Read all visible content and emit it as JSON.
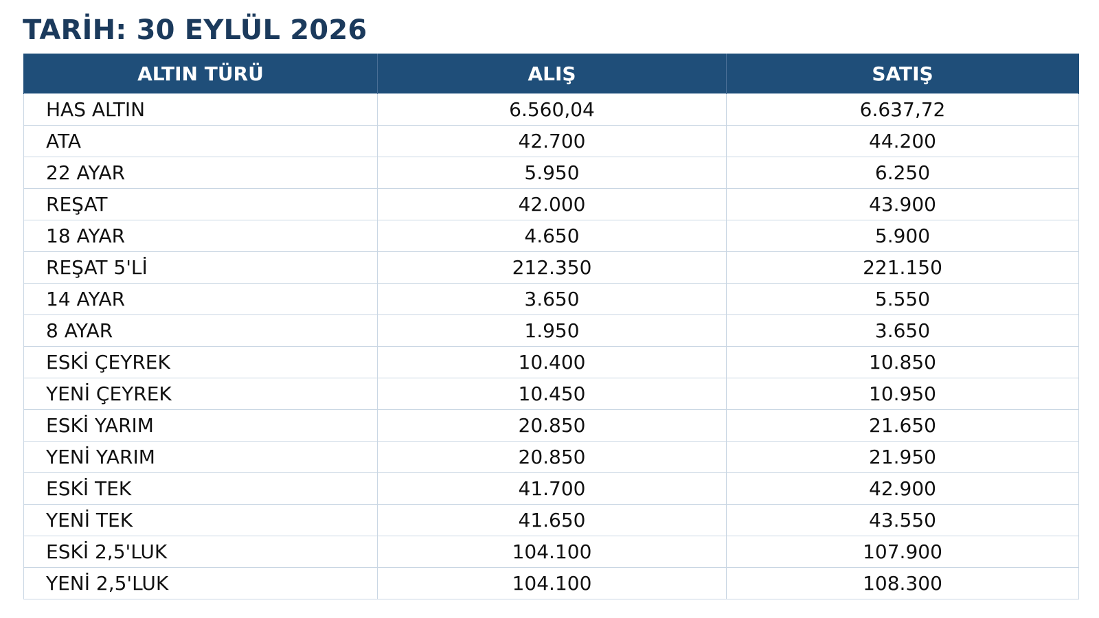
{
  "title": "TARİH: 30 EYLÜL 2026",
  "table": {
    "headers": [
      "ALTIN TÜRÜ",
      "ALIŞ",
      "SATIŞ"
    ],
    "rows": [
      {
        "name": "HAS ALTIN",
        "buy": "6.560,04",
        "sell": "6.637,72"
      },
      {
        "name": "ATA",
        "buy": "42.700",
        "sell": "44.200"
      },
      {
        "name": "22 AYAR",
        "buy": "5.950",
        "sell": "6.250"
      },
      {
        "name": "REŞAT",
        "buy": "42.000",
        "sell": "43.900"
      },
      {
        "name": "18 AYAR",
        "buy": "4.650",
        "sell": "5.900"
      },
      {
        "name": "REŞAT 5'Lİ",
        "buy": "212.350",
        "sell": "221.150"
      },
      {
        "name": "14 AYAR",
        "buy": "3.650",
        "sell": "5.550"
      },
      {
        "name": "8 AYAR",
        "buy": "1.950",
        "sell": "3.650"
      },
      {
        "name": "ESKİ ÇEYREK",
        "buy": "10.400",
        "sell": "10.850"
      },
      {
        "name": "YENİ ÇEYREK",
        "buy": "10.450",
        "sell": "10.950"
      },
      {
        "name": "ESKİ YARIM",
        "buy": "20.850",
        "sell": "21.650"
      },
      {
        "name": "YENİ YARIM",
        "buy": "20.850",
        "sell": "21.950"
      },
      {
        "name": "ESKİ TEK",
        "buy": "41.700",
        "sell": "42.900"
      },
      {
        "name": "YENİ TEK",
        "buy": "41.650",
        "sell": "43.550"
      },
      {
        "name": "ESKİ 2,5'LUK",
        "buy": "104.100",
        "sell": "107.900"
      },
      {
        "name": "YENİ 2,5'LUK",
        "buy": "104.100",
        "sell": "108.300"
      }
    ]
  },
  "colors": {
    "header_bg": "#1f4e79",
    "title": "#1b3a5c",
    "grid": "#c9d6e3"
  }
}
